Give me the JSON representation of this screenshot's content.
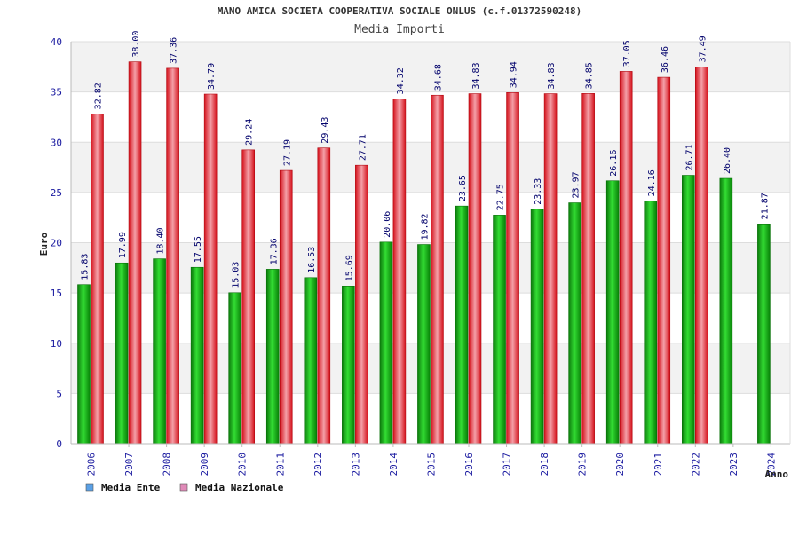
{
  "chart_data": {
    "type": "bar",
    "title": "MANO AMICA SOCIETA COOPERATIVA SOCIALE ONLUS (c.f.01372590248)",
    "subtitle": "Media Importi",
    "xlabel": "Anno",
    "ylabel": "Euro",
    "ylim": [
      0,
      40
    ],
    "yticks": [
      0,
      5,
      10,
      15,
      20,
      25,
      30,
      35,
      40
    ],
    "grid": true,
    "legend_position": "bottom-left",
    "categories": [
      "2006",
      "2007",
      "2008",
      "2009",
      "2010",
      "2011",
      "2012",
      "2013",
      "2014",
      "2015",
      "2016",
      "2017",
      "2018",
      "2019",
      "2020",
      "2021",
      "2022",
      "2023",
      "2024"
    ],
    "series": [
      {
        "name": "Media Ente",
        "color": "#0aa80a",
        "legend_color": "#5aa0e6",
        "values": [
          15.83,
          17.99,
          18.4,
          17.55,
          15.03,
          17.36,
          16.53,
          15.69,
          20.06,
          19.82,
          23.65,
          22.75,
          23.33,
          23.97,
          26.16,
          24.16,
          26.71,
          26.4,
          21.87
        ],
        "labels": [
          "15.83",
          "17.99",
          "18.40",
          "17.55",
          "15.03",
          "17.36",
          "16.53",
          "15.69",
          "20.06",
          "19.82",
          "23.65",
          "22.75",
          "23.33",
          "23.97",
          "26.16",
          "24.16",
          "26.71",
          "26.40",
          "21.87"
        ]
      },
      {
        "name": "Media Nazionale",
        "color": "#e8202a",
        "legend_color": "#e08ab8",
        "values": [
          32.82,
          38.0,
          37.36,
          34.79,
          29.24,
          27.19,
          29.43,
          27.71,
          34.32,
          34.68,
          34.83,
          34.94,
          34.83,
          34.85,
          37.05,
          36.46,
          37.49,
          null,
          null
        ],
        "labels": [
          "32.82",
          "38.00",
          "37.36",
          "34.79",
          "29.24",
          "27.19",
          "29.43",
          "27.71",
          "34.32",
          "34.68",
          "34.83",
          "34.94",
          "34.83",
          "34.85",
          "37.05",
          "36.46",
          "37.49",
          null,
          null
        ]
      }
    ]
  }
}
